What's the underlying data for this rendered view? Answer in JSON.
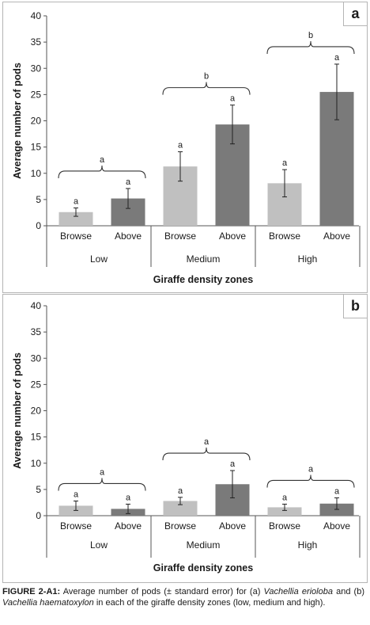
{
  "chart_data": [
    {
      "type": "bar",
      "panel_label": "a",
      "ylabel": "Average number of pods",
      "xlabel": "Giraffe density zones",
      "ylim": [
        0,
        40
      ],
      "yticks": [
        0,
        5,
        10,
        15,
        20,
        25,
        30,
        35,
        40
      ],
      "grid": false,
      "groups": [
        {
          "name": "Low",
          "bracket_letter": "a",
          "bars": [
            {
              "label": "Browse",
              "value": 2.6,
              "error": 0.8,
              "sig": "a",
              "color": "#c0c0c0"
            },
            {
              "label": "Above",
              "value": 5.2,
              "error": 1.9,
              "sig": "a",
              "color": "#7a7a7a"
            }
          ]
        },
        {
          "name": "Medium",
          "bracket_letter": "b",
          "bars": [
            {
              "label": "Browse",
              "value": 11.3,
              "error": 2.8,
              "sig": "a",
              "color": "#c0c0c0"
            },
            {
              "label": "Above",
              "value": 19.3,
              "error": 3.7,
              "sig": "a",
              "color": "#7a7a7a"
            }
          ]
        },
        {
          "name": "High",
          "bracket_letter": "b",
          "bars": [
            {
              "label": "Browse",
              "value": 8.1,
              "error": 2.6,
              "sig": "a",
              "color": "#c0c0c0"
            },
            {
              "label": "Above",
              "value": 25.5,
              "error": 5.3,
              "sig": "a",
              "color": "#7a7a7a"
            }
          ]
        }
      ]
    },
    {
      "type": "bar",
      "panel_label": "b",
      "ylabel": "Average number of pods",
      "xlabel": "Giraffe density zones",
      "ylim": [
        0,
        40
      ],
      "yticks": [
        0,
        5,
        10,
        15,
        20,
        25,
        30,
        35,
        40
      ],
      "grid": false,
      "groups": [
        {
          "name": "Low",
          "bracket_letter": "a",
          "bars": [
            {
              "label": "Browse",
              "value": 1.9,
              "error": 0.9,
              "sig": "a",
              "color": "#c0c0c0"
            },
            {
              "label": "Above",
              "value": 1.3,
              "error": 0.9,
              "sig": "a",
              "color": "#7a7a7a"
            }
          ]
        },
        {
          "name": "Medium",
          "bracket_letter": "a",
          "bars": [
            {
              "label": "Browse",
              "value": 2.8,
              "error": 0.7,
              "sig": "a",
              "color": "#c0c0c0"
            },
            {
              "label": "Above",
              "value": 6.0,
              "error": 2.6,
              "sig": "a",
              "color": "#7a7a7a"
            }
          ]
        },
        {
          "name": "High",
          "bracket_letter": "a",
          "bars": [
            {
              "label": "Browse",
              "value": 1.6,
              "error": 0.6,
              "sig": "a",
              "color": "#c0c0c0"
            },
            {
              "label": "Above",
              "value": 2.3,
              "error": 1.1,
              "sig": "a",
              "color": "#7a7a7a"
            }
          ]
        }
      ]
    }
  ],
  "caption": {
    "lead": "FIGURE 2-A1:",
    "part1": " Average number of pods (± standard error) for (a) ",
    "species_a": "Vachellia erioloba",
    "part2": " and (b) ",
    "species_b": "Vachellia haematoxylon",
    "part3": " in each of the giraffe density zones (low, medium and high)."
  }
}
